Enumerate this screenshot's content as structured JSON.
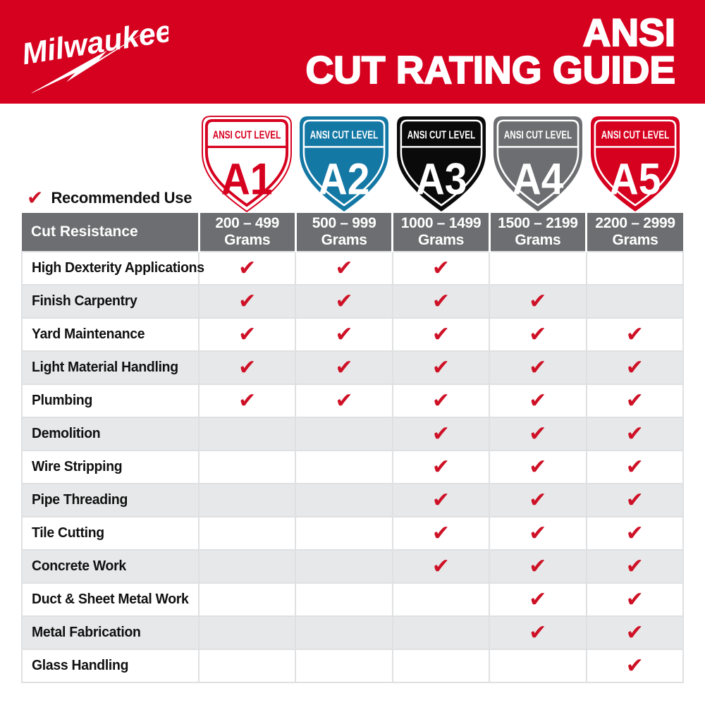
{
  "colors": {
    "brand_red": "#D6001F",
    "check_red": "#CE1126",
    "blue": "#1478A5",
    "black": "#0A0A0A",
    "gray": "#6D6E71",
    "header_gray": "#6D6E71",
    "alt_row": "#E7E8E9",
    "cell_border": "#DFE0E2",
    "white": "#FFFFFF"
  },
  "brand": {
    "logo_text": "Milwaukee",
    "registered_mark": "®"
  },
  "header": {
    "title_line1": "ANSI",
    "title_line2": "CUT RATING GUIDE"
  },
  "levels": [
    {
      "letter": "A1",
      "banner": "ANSI CUT LEVEL",
      "style": "outline",
      "bg": "#FFFFFF",
      "fg": "#D6001F",
      "range": "200 – 499",
      "unit": "Grams"
    },
    {
      "letter": "A2",
      "banner": "ANSI CUT LEVEL",
      "style": "solid",
      "bg": "#1478A5",
      "fg": "#FFFFFF",
      "range": "500 – 999",
      "unit": "Grams"
    },
    {
      "letter": "A3",
      "banner": "ANSI CUT LEVEL",
      "style": "solid",
      "bg": "#0A0A0A",
      "fg": "#FFFFFF",
      "range": "1000 – 1499",
      "unit": "Grams"
    },
    {
      "letter": "A4",
      "banner": "ANSI CUT LEVEL",
      "style": "solid",
      "bg": "#6D6E71",
      "fg": "#FFFFFF",
      "range": "1500 – 2199",
      "unit": "Grams"
    },
    {
      "letter": "A5",
      "banner": "ANSI CUT LEVEL",
      "style": "solid",
      "bg": "#D6001F",
      "fg": "#FFFFFF",
      "range": "2200 – 2999",
      "unit": "Grams"
    }
  ],
  "legend": {
    "label": "Recommended Use"
  },
  "table": {
    "corner_label": "Cut Resistance",
    "check_glyph": "✔",
    "rows": [
      {
        "label": "High Dexterity Applications",
        "checks": [
          true,
          true,
          true,
          false,
          false
        ]
      },
      {
        "label": "Finish Carpentry",
        "checks": [
          true,
          true,
          true,
          true,
          false
        ]
      },
      {
        "label": "Yard Maintenance",
        "checks": [
          true,
          true,
          true,
          true,
          true
        ]
      },
      {
        "label": "Light Material Handling",
        "checks": [
          true,
          true,
          true,
          true,
          true
        ]
      },
      {
        "label": "Plumbing",
        "checks": [
          true,
          true,
          true,
          true,
          true
        ]
      },
      {
        "label": "Demolition",
        "checks": [
          false,
          false,
          true,
          true,
          true
        ]
      },
      {
        "label": "Wire Stripping",
        "checks": [
          false,
          false,
          true,
          true,
          true
        ]
      },
      {
        "label": "Pipe Threading",
        "checks": [
          false,
          false,
          true,
          true,
          true
        ]
      },
      {
        "label": "Tile Cutting",
        "checks": [
          false,
          false,
          true,
          true,
          true
        ]
      },
      {
        "label": "Concrete Work",
        "checks": [
          false,
          false,
          true,
          true,
          true
        ]
      },
      {
        "label": "Duct & Sheet Metal Work",
        "checks": [
          false,
          false,
          false,
          true,
          true
        ]
      },
      {
        "label": "Metal Fabrication",
        "checks": [
          false,
          false,
          false,
          true,
          true
        ]
      },
      {
        "label": "Glass Handling",
        "checks": [
          false,
          false,
          false,
          false,
          true
        ]
      }
    ]
  }
}
